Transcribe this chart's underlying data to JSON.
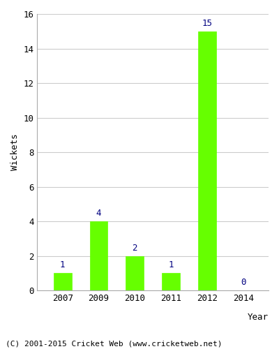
{
  "years": [
    2007,
    2009,
    2010,
    2011,
    2012,
    2014
  ],
  "wickets": [
    1,
    4,
    2,
    1,
    15,
    0
  ],
  "bar_color": "#66ff00",
  "bar_edge_color": "#66ff00",
  "label_color": "#000080",
  "xlabel": "Year",
  "ylabel": "Wickets",
  "ylim": [
    0,
    16
  ],
  "yticks": [
    0,
    2,
    4,
    6,
    8,
    10,
    12,
    14,
    16
  ],
  "footer": "(C) 2001-2015 Cricket Web (www.cricketweb.net)",
  "background_color": "#ffffff",
  "grid_color": "#cccccc",
  "label_fontsize": 9,
  "axis_fontsize": 9,
  "footer_fontsize": 8,
  "xlabel_fontsize": 9,
  "ylabel_fontsize": 9
}
